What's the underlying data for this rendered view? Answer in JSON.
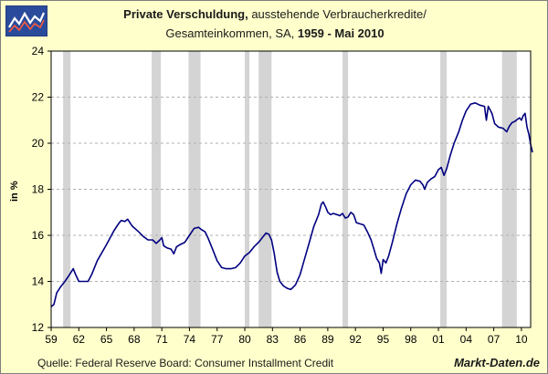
{
  "header": {
    "title_bold": "Private Verschuldung,",
    "title_rest": " ausstehende Verbraucherkredite/",
    "subtitle_plain": "Gesamteinkommen, SA,",
    "subtitle_bold": " 1959 - Mai 2010",
    "logo": "chart-logo-icon"
  },
  "footer": {
    "source": "Quelle: Federal Reserve Board: Consumer Installment Credit",
    "brand": "Markt-Daten.de"
  },
  "colors": {
    "background": "#ffffcc",
    "plot_background": "#ffffff",
    "line": "#000080",
    "recession": "#d4d4d4",
    "grid": "#b0b0b0"
  },
  "chart_data": {
    "type": "line",
    "title": "Private Verschuldung, ausstehende Verbraucherkredite/ Gesamteinkommen, SA, 1959 - Mai 2010",
    "ylabel": "in %",
    "xlabel": "",
    "xlim": [
      1959.0,
      2011.0
    ],
    "ylim": [
      12,
      24
    ],
    "yticks": [
      12,
      14,
      16,
      18,
      20,
      22,
      24
    ],
    "xticks": [
      {
        "x": 1959,
        "label": "59"
      },
      {
        "x": 1962,
        "label": "62"
      },
      {
        "x": 1965,
        "label": "65"
      },
      {
        "x": 1968,
        "label": "68"
      },
      {
        "x": 1971,
        "label": "71"
      },
      {
        "x": 1974,
        "label": "74"
      },
      {
        "x": 1977,
        "label": "77"
      },
      {
        "x": 1980,
        "label": "80"
      },
      {
        "x": 1983,
        "label": "83"
      },
      {
        "x": 1986,
        "label": "86"
      },
      {
        "x": 1989,
        "label": "89"
      },
      {
        "x": 1992,
        "label": "92"
      },
      {
        "x": 1995,
        "label": "95"
      },
      {
        "x": 1998,
        "label": "98"
      },
      {
        "x": 2001,
        "label": "01"
      },
      {
        "x": 2004,
        "label": "04"
      },
      {
        "x": 2007,
        "label": "07"
      },
      {
        "x": 2010,
        "label": "10"
      }
    ],
    "grid": "horizontal dashed",
    "recessions": [
      [
        1960.3,
        1961.1
      ],
      [
        1969.9,
        1970.9
      ],
      [
        1973.9,
        1975.2
      ],
      [
        1980.0,
        1980.5
      ],
      [
        1981.5,
        1982.9
      ],
      [
        1990.6,
        1991.2
      ],
      [
        2001.2,
        2001.9
      ],
      [
        2007.9,
        2009.5
      ]
    ],
    "series": [
      {
        "values": [
          [
            1959.0,
            12.9
          ],
          [
            1959.3,
            13.0
          ],
          [
            1959.6,
            13.5
          ],
          [
            1960.0,
            13.75
          ],
          [
            1960.5,
            14.0
          ],
          [
            1961.0,
            14.3
          ],
          [
            1961.4,
            14.55
          ],
          [
            1961.6,
            14.35
          ],
          [
            1962.0,
            14.0
          ],
          [
            1962.5,
            14.0
          ],
          [
            1963.0,
            14.0
          ],
          [
            1963.4,
            14.3
          ],
          [
            1964.0,
            14.9
          ],
          [
            1965.0,
            15.6
          ],
          [
            1965.8,
            16.2
          ],
          [
            1966.3,
            16.5
          ],
          [
            1966.6,
            16.65
          ],
          [
            1967.0,
            16.6
          ],
          [
            1967.3,
            16.7
          ],
          [
            1967.8,
            16.4
          ],
          [
            1968.5,
            16.15
          ],
          [
            1969.0,
            15.95
          ],
          [
            1969.5,
            15.8
          ],
          [
            1970.0,
            15.8
          ],
          [
            1970.4,
            15.65
          ],
          [
            1970.8,
            15.8
          ],
          [
            1971.0,
            15.9
          ],
          [
            1971.2,
            15.55
          ],
          [
            1971.6,
            15.45
          ],
          [
            1972.0,
            15.4
          ],
          [
            1972.3,
            15.2
          ],
          [
            1972.6,
            15.5
          ],
          [
            1973.0,
            15.6
          ],
          [
            1973.5,
            15.7
          ],
          [
            1974.0,
            16.0
          ],
          [
            1974.5,
            16.3
          ],
          [
            1975.0,
            16.35
          ],
          [
            1975.3,
            16.25
          ],
          [
            1975.7,
            16.15
          ],
          [
            1976.0,
            15.9
          ],
          [
            1976.5,
            15.4
          ],
          [
            1977.0,
            14.9
          ],
          [
            1977.5,
            14.6
          ],
          [
            1978.0,
            14.55
          ],
          [
            1978.5,
            14.55
          ],
          [
            1979.0,
            14.6
          ],
          [
            1979.5,
            14.8
          ],
          [
            1980.0,
            15.1
          ],
          [
            1980.5,
            15.25
          ],
          [
            1981.0,
            15.5
          ],
          [
            1981.5,
            15.7
          ],
          [
            1982.0,
            15.95
          ],
          [
            1982.3,
            16.1
          ],
          [
            1982.6,
            16.05
          ],
          [
            1982.9,
            15.8
          ],
          [
            1983.2,
            15.2
          ],
          [
            1983.5,
            14.4
          ],
          [
            1983.8,
            14.0
          ],
          [
            1984.2,
            13.8
          ],
          [
            1984.6,
            13.7
          ],
          [
            1985.0,
            13.65
          ],
          [
            1985.5,
            13.85
          ],
          [
            1986.0,
            14.3
          ],
          [
            1986.5,
            15.0
          ],
          [
            1987.0,
            15.7
          ],
          [
            1987.5,
            16.4
          ],
          [
            1988.0,
            16.9
          ],
          [
            1988.3,
            17.35
          ],
          [
            1988.5,
            17.45
          ],
          [
            1988.8,
            17.2
          ],
          [
            1989.0,
            17.0
          ],
          [
            1989.3,
            16.9
          ],
          [
            1989.6,
            16.95
          ],
          [
            1990.0,
            16.9
          ],
          [
            1990.3,
            16.85
          ],
          [
            1990.6,
            16.95
          ],
          [
            1990.9,
            16.75
          ],
          [
            1991.2,
            16.8
          ],
          [
            1991.5,
            17.0
          ],
          [
            1991.8,
            16.9
          ],
          [
            1992.1,
            16.55
          ],
          [
            1992.5,
            16.5
          ],
          [
            1992.9,
            16.45
          ],
          [
            1993.3,
            16.15
          ],
          [
            1993.7,
            15.8
          ],
          [
            1994.0,
            15.4
          ],
          [
            1994.3,
            15.0
          ],
          [
            1994.6,
            14.8
          ],
          [
            1994.8,
            14.35
          ],
          [
            1995.0,
            14.95
          ],
          [
            1995.3,
            14.8
          ],
          [
            1995.6,
            15.1
          ],
          [
            1996.0,
            15.7
          ],
          [
            1996.5,
            16.5
          ],
          [
            1997.0,
            17.2
          ],
          [
            1997.5,
            17.8
          ],
          [
            1998.0,
            18.2
          ],
          [
            1998.5,
            18.4
          ],
          [
            1999.0,
            18.35
          ],
          [
            1999.3,
            18.2
          ],
          [
            1999.5,
            18.0
          ],
          [
            1999.8,
            18.3
          ],
          [
            2000.2,
            18.45
          ],
          [
            2000.6,
            18.55
          ],
          [
            2001.0,
            18.85
          ],
          [
            2001.3,
            18.95
          ],
          [
            2001.6,
            18.6
          ],
          [
            2001.9,
            18.9
          ],
          [
            2002.3,
            19.5
          ],
          [
            2002.7,
            20.0
          ],
          [
            2003.2,
            20.5
          ],
          [
            2003.6,
            21.0
          ],
          [
            2004.0,
            21.4
          ],
          [
            2004.5,
            21.7
          ],
          [
            2005.0,
            21.75
          ],
          [
            2005.5,
            21.65
          ],
          [
            2006.0,
            21.6
          ],
          [
            2006.2,
            21.0
          ],
          [
            2006.4,
            21.6
          ],
          [
            2006.8,
            21.3
          ],
          [
            2007.1,
            20.85
          ],
          [
            2007.5,
            20.7
          ],
          [
            2008.0,
            20.65
          ],
          [
            2008.4,
            20.5
          ],
          [
            2008.7,
            20.75
          ],
          [
            2009.0,
            20.9
          ],
          [
            2009.3,
            20.95
          ],
          [
            2009.6,
            21.05
          ],
          [
            2009.8,
            21.1
          ],
          [
            2010.0,
            21.0
          ],
          [
            2010.2,
            21.2
          ],
          [
            2010.4,
            21.3
          ],
          [
            2010.6,
            20.7
          ],
          [
            2010.8,
            20.4
          ],
          [
            2011.0,
            19.95
          ],
          [
            2011.2,
            19.6
          ]
        ]
      }
    ]
  }
}
